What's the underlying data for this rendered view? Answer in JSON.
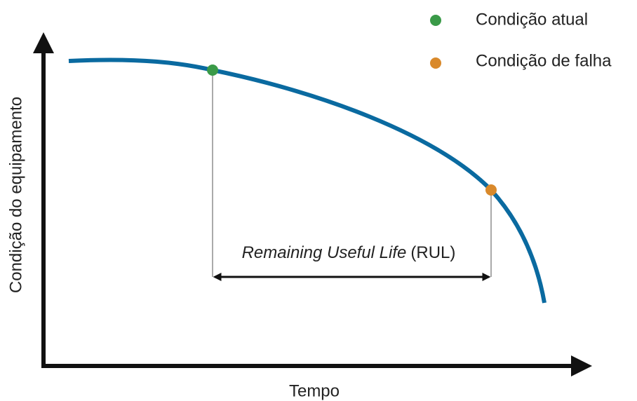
{
  "legend": [
    {
      "label": "Condição atual",
      "color": "#3a9a48"
    },
    {
      "label": "Condição de falha",
      "color": "#d9892b"
    }
  ],
  "axes": {
    "y_label": "Condição do equipamento",
    "x_label": "Tempo"
  },
  "rul": {
    "italic": "Remaining Useful Life",
    "rest": "(RUL)"
  }
}
